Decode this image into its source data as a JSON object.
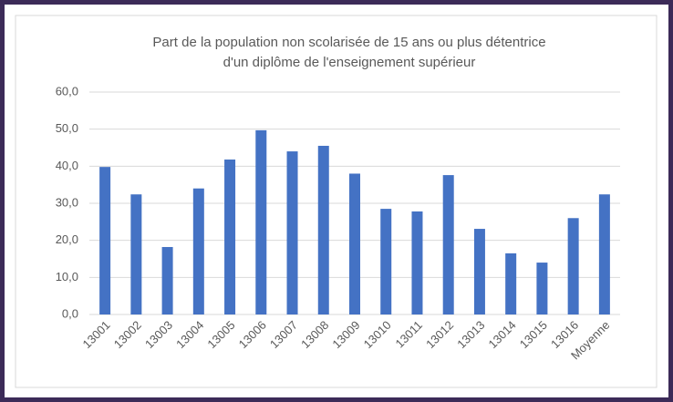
{
  "chart_data": {
    "type": "bar",
    "title": [
      "Part de la population non scolarisée de 15 ans ou plus détentrice",
      "d'un diplôme de l'enseignement supérieur"
    ],
    "categories": [
      "13001",
      "13002",
      "13003",
      "13004",
      "13005",
      "13006",
      "13007",
      "13008",
      "13009",
      "13010",
      "13011",
      "13012",
      "13013",
      "13014",
      "13015",
      "13016",
      "Moyenne"
    ],
    "values": [
      39.8,
      32.4,
      18.2,
      34.0,
      41.8,
      49.7,
      44.0,
      45.5,
      38.0,
      28.5,
      27.8,
      37.6,
      23.1,
      16.5,
      14.0,
      26.0,
      32.4
    ],
    "color": "#4472c4",
    "ylim": [
      0,
      60
    ],
    "yticks": [
      {
        "value": 0,
        "label": "0,0"
      },
      {
        "value": 10,
        "label": "10,0"
      },
      {
        "value": 20,
        "label": "20,0"
      },
      {
        "value": 30,
        "label": "30,0"
      },
      {
        "value": 40,
        "label": "40,0"
      },
      {
        "value": 50,
        "label": "50,0"
      },
      {
        "value": 60,
        "label": "60,0"
      }
    ],
    "grid": true
  }
}
